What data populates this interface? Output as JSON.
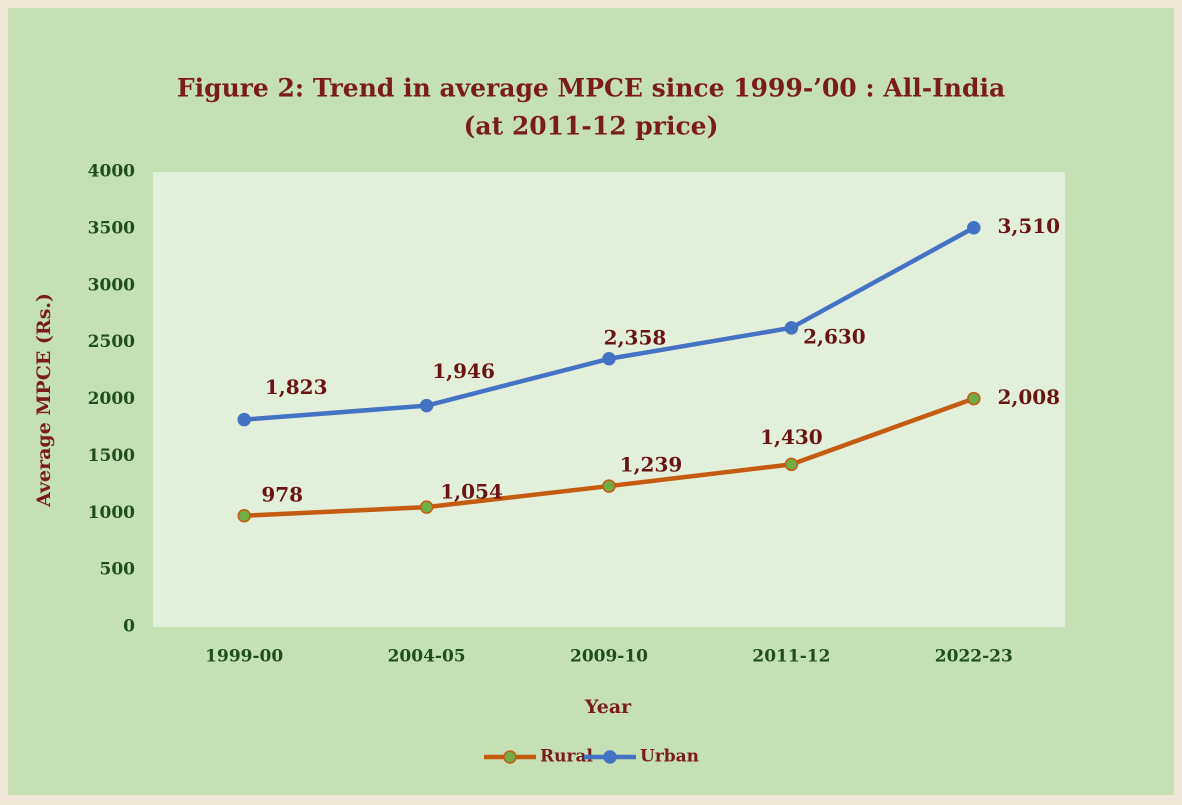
{
  "chart_data": {
    "type": "line",
    "title": "Figure 2: Trend in average MPCE since 1999-’00 : All-India",
    "subtitle": "(at 2011-12 price)",
    "x_label": "Year",
    "y_label": "Average MPCE (Rs.)",
    "categories": [
      "1999-00",
      "2004-05",
      "2009-10",
      "2011-12",
      "2022-23"
    ],
    "series": [
      {
        "name": "Rural",
        "color": "#c55a11",
        "marker_color": "#70ad47",
        "values": [
          978,
          1054,
          1239,
          1430,
          2008
        ],
        "value_labels": [
          "978",
          "1,054",
          "1,239",
          "1,430",
          "2,008"
        ]
      },
      {
        "name": "Urban",
        "color": "#4472c4",
        "marker_color": "#4472c4",
        "values": [
          1823,
          1946,
          2358,
          2630,
          3510
        ],
        "value_labels": [
          "1,823",
          "1,946",
          "2,358",
          "2,630",
          "3,510"
        ]
      }
    ],
    "ylim": [
      0,
      4000
    ],
    "yticks": [
      0,
      500,
      1000,
      1500,
      2000,
      2500,
      3000,
      3500,
      4000
    ],
    "grid": false,
    "legend": "bottom"
  }
}
